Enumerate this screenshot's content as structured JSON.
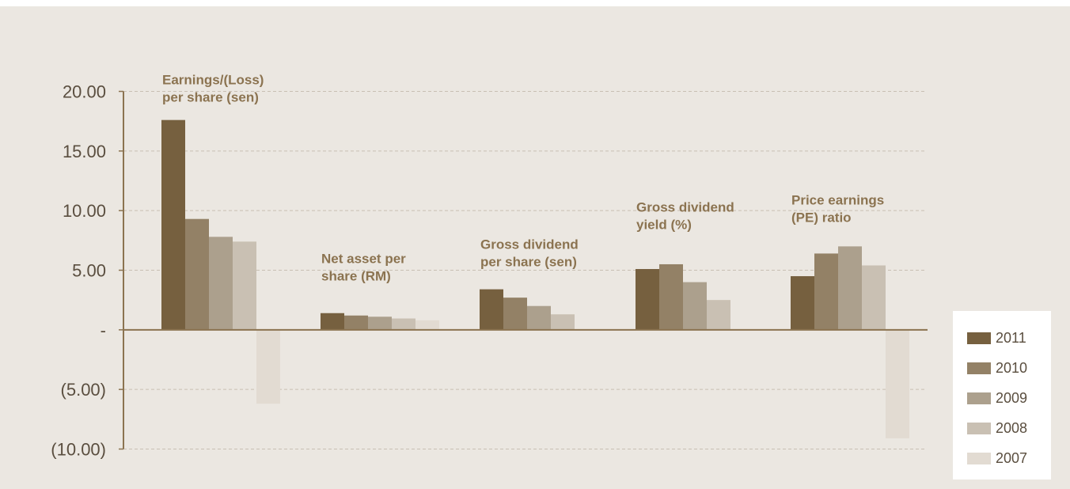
{
  "chart_data": {
    "type": "bar",
    "title": "",
    "xlabel": "",
    "ylabel": "",
    "ylim": [
      -10,
      20
    ],
    "yticks": [
      {
        "value": 20,
        "label": "20.00"
      },
      {
        "value": 15,
        "label": "15.00"
      },
      {
        "value": 10,
        "label": "10.00"
      },
      {
        "value": 5,
        "label": "5.00"
      },
      {
        "value": 0,
        "label": "-"
      },
      {
        "value": -5,
        "label": "(5.00)"
      },
      {
        "value": -10,
        "label": "(10.00)"
      }
    ],
    "grid": true,
    "legend_position": "right",
    "categories": [
      {
        "lines": [
          "Earnings/(Loss)",
          "per share (sen)"
        ],
        "label_level": 20.6
      },
      {
        "lines": [
          "Net asset per",
          "share (RM)"
        ],
        "label_level": 5.6
      },
      {
        "lines": [
          "Gross dividend",
          "per share (sen)"
        ],
        "label_level": 6.8
      },
      {
        "lines": [
          "Gross dividend",
          "yield (%)"
        ],
        "label_level": 9.9
      },
      {
        "lines": [
          "Price earnings",
          "(PE) ratio"
        ],
        "label_level": 10.5
      }
    ],
    "series": [
      {
        "name": "2011",
        "color": "#76603f",
        "values": [
          17.6,
          1.4,
          3.4,
          5.1,
          4.5
        ]
      },
      {
        "name": "2010",
        "color": "#938166",
        "values": [
          9.3,
          1.2,
          2.7,
          5.5,
          6.4
        ]
      },
      {
        "name": "2009",
        "color": "#aca08d",
        "values": [
          7.8,
          1.1,
          2.0,
          4.0,
          7.0
        ]
      },
      {
        "name": "2008",
        "color": "#c9c0b3",
        "values": [
          7.4,
          0.95,
          1.3,
          2.5,
          5.4
        ]
      },
      {
        "name": "2007",
        "color": "#e2dbd2",
        "values": [
          -6.2,
          0.8,
          null,
          null,
          -9.1
        ]
      }
    ],
    "colors": {
      "background": "#ebe7e1",
      "axis": "#8b7350",
      "grid": "#c8bfb3",
      "tick_text": "#5a4e3f",
      "category_text": "#8b7350"
    }
  }
}
